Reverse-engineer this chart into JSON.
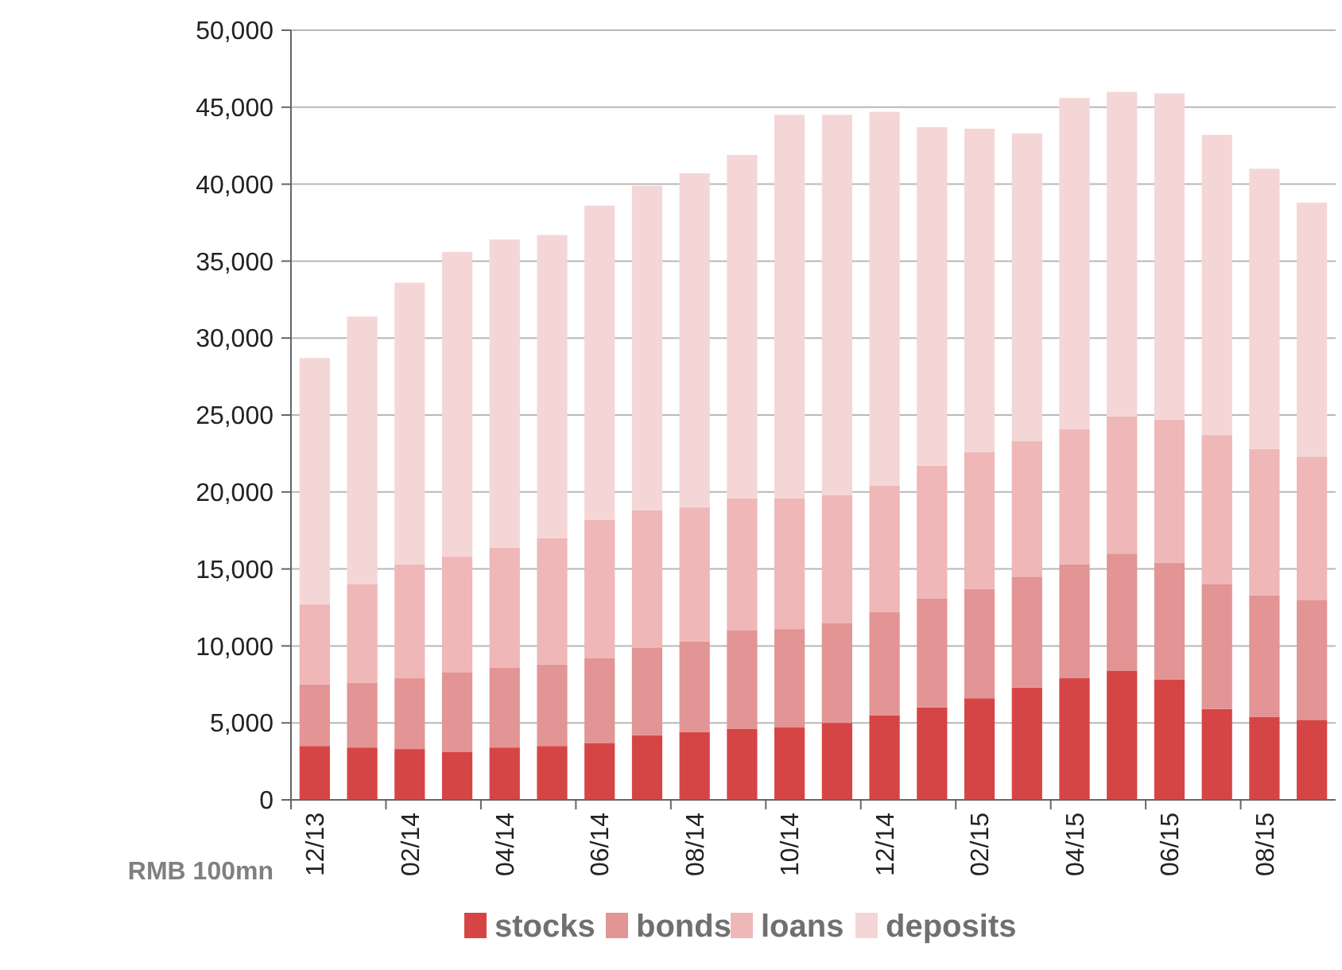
{
  "chart_data": {
    "type": "bar",
    "stacked": true,
    "ylabel": "RMB 100mn",
    "categories": [
      "12/13",
      null,
      "02/14",
      null,
      "04/14",
      null,
      "06/14",
      null,
      "08/14",
      null,
      "10/14",
      null,
      "12/14",
      null,
      "02/15",
      null,
      "04/15",
      null,
      "06/15",
      null,
      "08/15",
      null
    ],
    "series": [
      {
        "name": "stocks",
        "color": "#d64545",
        "values": [
          3500,
          3400,
          3300,
          3100,
          3400,
          3500,
          3700,
          4200,
          4400,
          4600,
          4700,
          5000,
          5500,
          6000,
          6600,
          7300,
          7900,
          8400,
          7800,
          5900,
          5400,
          5200
        ]
      },
      {
        "name": "bonds",
        "color": "#e39494",
        "values": [
          4000,
          4200,
          4600,
          5200,
          5200,
          5300,
          5500,
          5700,
          5900,
          6400,
          6400,
          6500,
          6700,
          7100,
          7100,
          7200,
          7400,
          7600,
          7600,
          8100,
          7900,
          7800
        ]
      },
      {
        "name": "loans",
        "color": "#efb7b7",
        "values": [
          5200,
          6400,
          7400,
          7500,
          7800,
          8200,
          9000,
          8900,
          8700,
          8600,
          8500,
          8300,
          8200,
          8600,
          8900,
          8800,
          8800,
          8900,
          9300,
          9700,
          9500,
          9300
        ]
      },
      {
        "name": "deposits",
        "color": "#f5d6d6",
        "values": [
          16000,
          17400,
          18300,
          19800,
          20000,
          19700,
          20400,
          21100,
          21700,
          22300,
          24900,
          24700,
          24300,
          22000,
          21000,
          20000,
          21500,
          21100,
          21200,
          19500,
          18200,
          16500
        ]
      }
    ],
    "ylim": [
      0,
      50000
    ],
    "yticks": [
      {
        "value": 0,
        "label": "0"
      },
      {
        "value": 5000,
        "label": "5,000"
      },
      {
        "value": 10000,
        "label": "10,000"
      },
      {
        "value": 15000,
        "label": "15,000"
      },
      {
        "value": 20000,
        "label": "20,000"
      },
      {
        "value": 25000,
        "label": "25,000"
      },
      {
        "value": 30000,
        "label": "30,000"
      },
      {
        "value": 35000,
        "label": "35,000"
      },
      {
        "value": 40000,
        "label": "40,000"
      },
      {
        "value": 45000,
        "label": "45,000"
      },
      {
        "value": 50000,
        "label": "50,000"
      }
    ],
    "grid": "y",
    "legend": "bottom"
  }
}
